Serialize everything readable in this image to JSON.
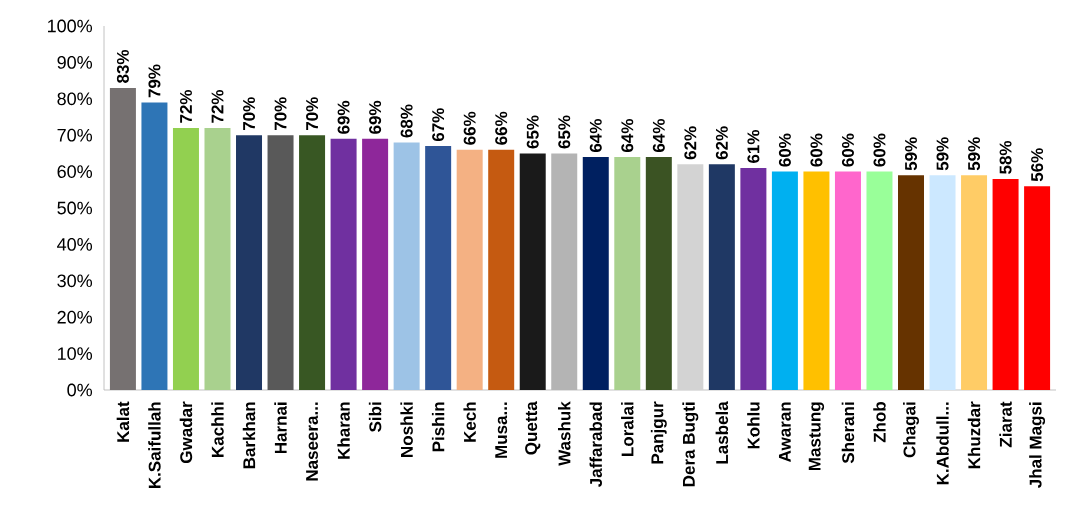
{
  "chart_data": {
    "type": "bar",
    "categories": [
      "Kalat",
      "K.Saifullah",
      "Gwadar",
      "Kachhi",
      "Barkhan",
      "Harnai",
      "Naseera...",
      "Kharan",
      "Sibi",
      "Noshki",
      "Pishin",
      "Kech",
      "Musa...",
      "Quetta",
      "Washuk",
      "Jaffarabad",
      "Loralai",
      "Panjgur",
      "Dera Bugti",
      "Lasbela",
      "Kohlu",
      "Awaran",
      "Mastung",
      "Sherani",
      "Zhob",
      "Chagai",
      "K.Abdull...",
      "Khuzdar",
      "Ziarat",
      "Jhal Magsi"
    ],
    "values": [
      83,
      79,
      72,
      72,
      70,
      70,
      70,
      69,
      69,
      68,
      67,
      66,
      66,
      65,
      65,
      64,
      64,
      64,
      62,
      62,
      61,
      60,
      60,
      60,
      60,
      59,
      59,
      59,
      58,
      56
    ],
    "value_labels": [
      "83%",
      "79%",
      "72%",
      "72%",
      "70%",
      "70%",
      "70%",
      "69%",
      "69%",
      "68%",
      "67%",
      "66%",
      "66%",
      "65%",
      "65%",
      "64%",
      "64%",
      "64%",
      "62%",
      "62%",
      "61%",
      "60%",
      "60%",
      "60%",
      "60%",
      "59%",
      "59%",
      "59%",
      "58%",
      "56%"
    ],
    "colors": [
      "#767171",
      "#2e75b6",
      "#92d050",
      "#a9d18e",
      "#203864",
      "#595959",
      "#385723",
      "#7030a0",
      "#8e279a",
      "#9dc3e6",
      "#2f5597",
      "#f4b183",
      "#c55a11",
      "#1a1a1a",
      "#b4b4b4",
      "#002060",
      "#a9d18e",
      "#3b5323",
      "#d3d3d3",
      "#1f3864",
      "#7030a0",
      "#00b0f0",
      "#ffc000",
      "#ff66cc",
      "#99ff99",
      "#663300",
      "#cce8ff",
      "#ffcc66",
      "#ff0000",
      "#ff0000"
    ],
    "ylim": [
      0,
      100
    ],
    "yticks": [
      {
        "value": 0,
        "label": "0%"
      },
      {
        "value": 10,
        "label": "10%"
      },
      {
        "value": 20,
        "label": "20%"
      },
      {
        "value": 30,
        "label": "30%"
      },
      {
        "value": 40,
        "label": "40%"
      },
      {
        "value": 50,
        "label": "50%"
      },
      {
        "value": 60,
        "label": "60%"
      },
      {
        "value": 70,
        "label": "70%"
      },
      {
        "value": 80,
        "label": "80%"
      },
      {
        "value": 90,
        "label": "90%"
      },
      {
        "value": 100,
        "label": "100%"
      }
    ],
    "grid": false
  }
}
